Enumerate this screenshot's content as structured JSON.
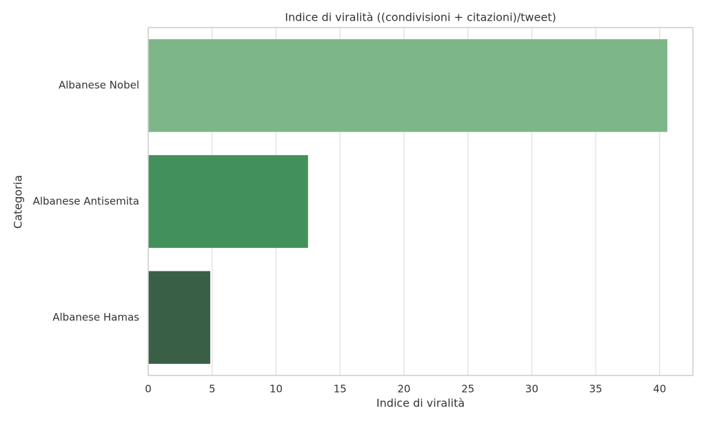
{
  "chart_data": {
    "type": "bar",
    "orientation": "horizontal",
    "title": "Indice di viralità ((condivisioni + citazioni)/tweet)",
    "xlabel": "Indice di viralità",
    "ylabel": "Categoria",
    "categories": [
      "Albanese Nobel",
      "Albanese Antisemita",
      "Albanese Hamas"
    ],
    "values": [
      40.6,
      12.5,
      4.85
    ],
    "colors": [
      "#7db687",
      "#43915a",
      "#3a5f47"
    ],
    "xlim": [
      0,
      42.6
    ],
    "xticks": [
      0,
      5,
      10,
      15,
      20,
      25,
      30,
      35,
      40
    ],
    "grid": true
  }
}
